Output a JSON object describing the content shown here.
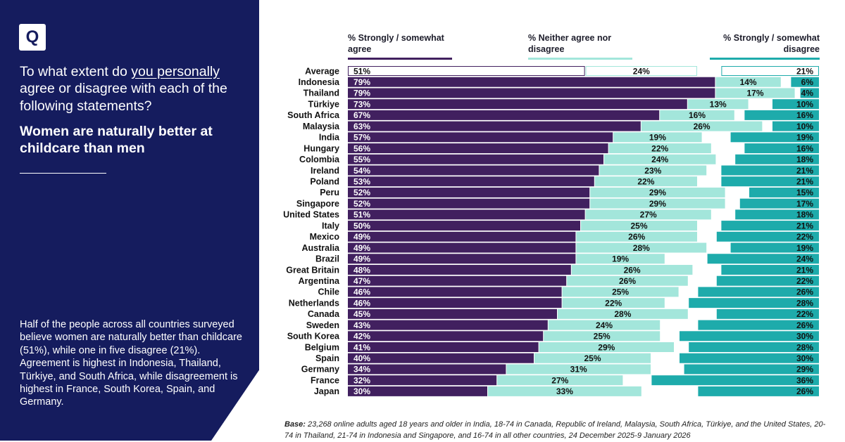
{
  "brand": {
    "logo_letter": "Q"
  },
  "sidebar": {
    "question_prefix": "To what extent do ",
    "question_underlined": "you personally",
    "question_suffix": " agree or disagree with each of the following statements?",
    "statement": "Women are naturally better at childcare than men",
    "summary": "Half of the people across all countries surveyed believe women are naturally better than childcare (51%), while one in five disagree (21%). Agreement is highest in Indonesia, Thailand, Türkiye, and South Africa, while disagreement is highest in France, South Korea, Spain, and Germany."
  },
  "headers": {
    "agree": "% Strongly / somewhat agree",
    "neither": "% Neither agree nor disagree",
    "disagree": "% Strongly / somewhat disagree"
  },
  "colors": {
    "agree": "#41205f",
    "neither": "#a3e6db",
    "disagree": "#1eabab",
    "sidebar": "#151c5e"
  },
  "base": {
    "label": "Base:",
    "text": "23,268 online adults aged 18 years and older in India, 18-74 in Canada, Republic of Ireland, Malaysia, South Africa, Türkiye, and the United States, 20-74 in Thailand, 21-74 in Indonesia and Singapore, and 16-74 in all other countries, 24 December 2025-9 January 2026"
  },
  "chart_data": {
    "type": "bar",
    "orientation": "horizontal",
    "stacked": "diverging",
    "title": "Women are naturally better at childcare than men",
    "xlim": [
      0,
      100
    ],
    "categories": [
      "Average",
      "Indonesia",
      "Thailand",
      "Türkiye",
      "South Africa",
      "Malaysia",
      "India",
      "Hungary",
      "Colombia",
      "Ireland",
      "Poland",
      "Peru",
      "Singapore",
      "United States",
      "Italy",
      "Mexico",
      "Australia",
      "Brazil",
      "Great Britain",
      "Argentina",
      "Chile",
      "Netherlands",
      "Canada",
      "Sweden",
      "South Korea",
      "Belgium",
      "Spain",
      "Germany",
      "France",
      "Japan"
    ],
    "series": [
      {
        "name": "% Strongly / somewhat agree",
        "values": [
          51,
          79,
          79,
          73,
          67,
          63,
          57,
          56,
          55,
          54,
          53,
          52,
          52,
          51,
          50,
          49,
          49,
          49,
          48,
          47,
          46,
          46,
          45,
          43,
          42,
          41,
          40,
          34,
          32,
          30
        ]
      },
      {
        "name": "% Neither agree nor disagree",
        "values": [
          24,
          14,
          17,
          13,
          16,
          26,
          19,
          22,
          24,
          23,
          22,
          29,
          29,
          27,
          25,
          26,
          28,
          19,
          26,
          26,
          25,
          22,
          28,
          24,
          25,
          29,
          25,
          31,
          27,
          33
        ]
      },
      {
        "name": "% Strongly / somewhat disagree",
        "values": [
          21,
          6,
          4,
          10,
          16,
          10,
          19,
          16,
          18,
          21,
          21,
          15,
          17,
          18,
          21,
          22,
          19,
          24,
          21,
          22,
          26,
          28,
          22,
          26,
          30,
          28,
          30,
          29,
          36,
          26
        ]
      }
    ]
  }
}
